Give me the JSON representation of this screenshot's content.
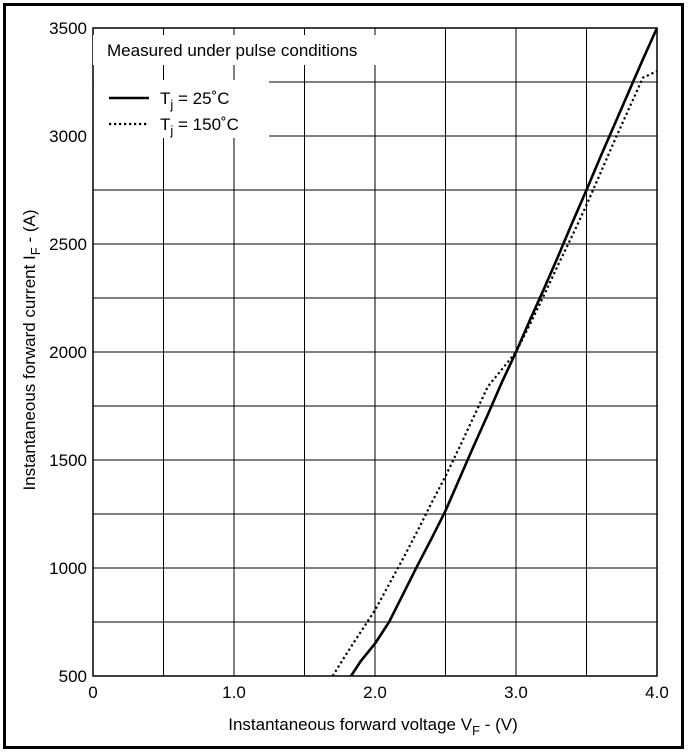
{
  "chart_data": {
    "type": "line",
    "annotation": "Measured under pulse conditions",
    "xlabel": {
      "main": "Instantaneous forward voltage V",
      "sub": "F",
      "tail": " - (V)"
    },
    "ylabel": {
      "main": "Instantaneous forward current I",
      "sub": "F",
      "tail": " - (A)"
    },
    "xlim": [
      0,
      4.0
    ],
    "ylim": [
      500,
      3500
    ],
    "x_ticks": [
      0,
      1.0,
      2.0,
      3.0,
      4.0
    ],
    "x_tick_labels": [
      "0",
      "1.0",
      "2.0",
      "3.0",
      "4.0"
    ],
    "y_ticks": [
      500,
      1000,
      1500,
      2000,
      2500,
      3000,
      3500
    ],
    "y_tick_labels": [
      "500",
      "1000",
      "1500",
      "2000",
      "2500",
      "3000",
      "3500"
    ],
    "grid": true,
    "legend_placement": "top-left",
    "series": [
      {
        "name_main": "T",
        "name_sub": "j",
        "name_tail": " = 25˚C",
        "style": "solid",
        "x": [
          1.83,
          1.9,
          2.0,
          2.1,
          2.2,
          2.3,
          2.4,
          2.5,
          2.6,
          2.7,
          2.8,
          2.9,
          3.0,
          3.1,
          3.2,
          3.3,
          3.4,
          3.5,
          3.6,
          3.7,
          3.8,
          3.9,
          4.0
        ],
        "y": [
          500,
          570,
          650,
          750,
          880,
          1010,
          1135,
          1265,
          1415,
          1565,
          1710,
          1860,
          2000,
          2150,
          2295,
          2445,
          2600,
          2750,
          2905,
          3055,
          3205,
          3355,
          3500
        ]
      },
      {
        "name_main": "T",
        "name_sub": "j",
        "name_tail": " = 150˚C",
        "style": "dotted",
        "x": [
          1.7,
          1.8,
          1.9,
          2.0,
          2.1,
          2.2,
          2.3,
          2.4,
          2.5,
          2.6,
          2.7,
          2.8,
          2.9,
          3.0,
          3.1,
          3.2,
          3.3,
          3.4,
          3.5,
          3.6,
          3.7,
          3.8,
          3.9,
          4.0
        ],
        "y": [
          500,
          605,
          705,
          805,
          925,
          1045,
          1170,
          1300,
          1425,
          1560,
          1700,
          1840,
          1920,
          2000,
          2130,
          2265,
          2405,
          2540,
          2680,
          2830,
          2980,
          3125,
          3270,
          3300
        ]
      }
    ],
    "colors": {
      "line": "#000000",
      "grid": "#000000",
      "background": "#ffffff"
    }
  }
}
